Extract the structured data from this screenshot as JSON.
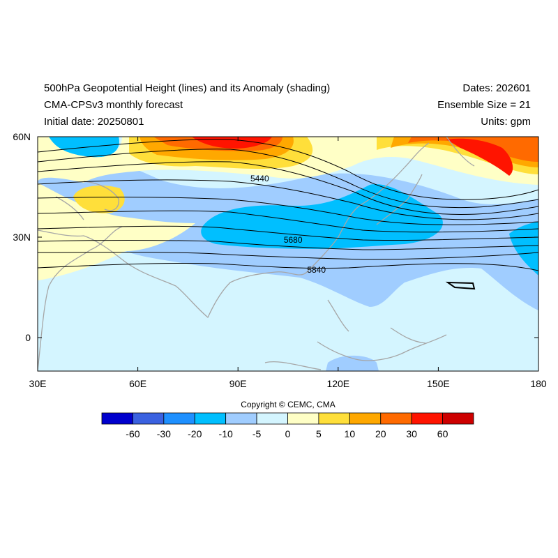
{
  "header": {
    "title": "500hPa Geopotential Height (lines) and its Anomaly (shading)",
    "model": "CMA-CPSv3 monthly forecast",
    "initial_date": "Initial date: 20250801",
    "dates": "Dates: 202601",
    "ensemble": "Ensemble Size = 21",
    "units": "Units: gpm"
  },
  "map": {
    "lon_range": [
      30,
      180
    ],
    "lat_range": [
      -10,
      60
    ],
    "lon_ticks": [
      {
        "value": 30,
        "label": "30E"
      },
      {
        "value": 60,
        "label": "60E"
      },
      {
        "value": 90,
        "label": "90E"
      },
      {
        "value": 120,
        "label": "120E"
      },
      {
        "value": 150,
        "label": "150E"
      },
      {
        "value": 180,
        "label": "180"
      }
    ],
    "lat_ticks": [
      {
        "value": 60,
        "label": "60N"
      },
      {
        "value": 30,
        "label": "30N"
      },
      {
        "value": 0,
        "label": "0"
      }
    ],
    "contour_labels": [
      {
        "text": "5440",
        "lon": 96.5,
        "lat": 47.5
      },
      {
        "text": "5680",
        "lon": 106.5,
        "lat": 29.2
      },
      {
        "text": "5840",
        "lon": 113.5,
        "lat": 20.2
      }
    ]
  },
  "colorbar": {
    "colors": [
      "#0000cd",
      "#3a61e0",
      "#1e90ff",
      "#00bfff",
      "#a0cdff",
      "#d4f5ff",
      "#ffffc6",
      "#ffdf3a",
      "#ffa800",
      "#ff6a00",
      "#ff1400",
      "#cd0000"
    ],
    "labels": [
      "-60",
      "-30",
      "-20",
      "-10",
      "-5",
      "0",
      "5",
      "10",
      "20",
      "30",
      "60"
    ]
  },
  "copyright": "Copyright © CEMC, CMA"
}
